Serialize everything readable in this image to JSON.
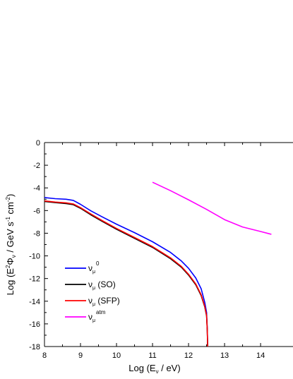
{
  "chart_data": {
    "type": "line",
    "xlabel": {
      "pre": "Log (E",
      "sub": "ν",
      "post": " / eV)"
    },
    "ylabel": {
      "pre": "Log (E",
      "sup1": "2",
      "mid1": "Φ",
      "sub1": "ν",
      "mid2": " / GeV s",
      "sup2": "-1",
      "mid3": " cm",
      "sup3": "-2",
      "post": ")"
    },
    "xlim": [
      8,
      14.9
    ],
    "ylim": [
      -18,
      0
    ],
    "xticks": [
      8,
      9,
      10,
      11,
      12,
      13,
      14
    ],
    "yticks": [
      0,
      -2,
      -4,
      -6,
      -8,
      -10,
      -12,
      -14,
      -16,
      -18
    ],
    "grid": false,
    "legend_position": "bottom-left",
    "series": [
      {
        "name": "ν_μ^0",
        "legend": {
          "base": "ν",
          "sub": "μ",
          "sup": "0",
          "suffix": ""
        },
        "color": "#0000ff",
        "points": [
          [
            8.0,
            -4.85
          ],
          [
            8.3,
            -4.95
          ],
          [
            8.6,
            -5.0
          ],
          [
            8.8,
            -5.1
          ],
          [
            9.0,
            -5.45
          ],
          [
            9.3,
            -6.05
          ],
          [
            9.6,
            -6.55
          ],
          [
            10.0,
            -7.2
          ],
          [
            10.5,
            -7.95
          ],
          [
            11.0,
            -8.75
          ],
          [
            11.5,
            -9.7
          ],
          [
            11.8,
            -10.45
          ],
          [
            12.0,
            -11.1
          ],
          [
            12.2,
            -11.95
          ],
          [
            12.35,
            -12.9
          ],
          [
            12.45,
            -14.1
          ],
          [
            12.5,
            -15.0
          ],
          [
            12.52,
            -16.5
          ],
          [
            12.53,
            -18.0
          ]
        ]
      },
      {
        "name": "ν_μ (SO)",
        "legend": {
          "base": "ν",
          "sub": "μ",
          "sup": "",
          "suffix": " (SO)"
        },
        "color": "#000000",
        "points": [
          [
            8.0,
            -5.2
          ],
          [
            8.3,
            -5.3
          ],
          [
            8.6,
            -5.38
          ],
          [
            8.8,
            -5.48
          ],
          [
            9.0,
            -5.8
          ],
          [
            9.3,
            -6.4
          ],
          [
            9.6,
            -6.95
          ],
          [
            10.0,
            -7.65
          ],
          [
            10.5,
            -8.45
          ],
          [
            11.0,
            -9.25
          ],
          [
            11.5,
            -10.25
          ],
          [
            11.8,
            -11.0
          ],
          [
            12.0,
            -11.7
          ],
          [
            12.2,
            -12.55
          ],
          [
            12.35,
            -13.5
          ],
          [
            12.45,
            -14.5
          ],
          [
            12.5,
            -15.3
          ],
          [
            12.52,
            -16.6
          ],
          [
            12.53,
            -18.0
          ]
        ]
      },
      {
        "name": "ν_μ (SFP)",
        "legend": {
          "base": "ν",
          "sub": "μ",
          "sup": "",
          "suffix": " (SFP)"
        },
        "color": "#ff0000",
        "points": [
          [
            8.0,
            -5.15
          ],
          [
            8.3,
            -5.25
          ],
          [
            8.6,
            -5.32
          ],
          [
            8.8,
            -5.42
          ],
          [
            9.0,
            -5.74
          ],
          [
            9.3,
            -6.33
          ],
          [
            9.6,
            -6.88
          ],
          [
            10.0,
            -7.58
          ],
          [
            10.5,
            -8.38
          ],
          [
            11.0,
            -9.18
          ],
          [
            11.5,
            -10.18
          ],
          [
            11.8,
            -10.93
          ],
          [
            12.0,
            -11.63
          ],
          [
            12.2,
            -12.48
          ],
          [
            12.35,
            -13.43
          ],
          [
            12.45,
            -14.45
          ],
          [
            12.5,
            -15.25
          ],
          [
            12.52,
            -16.6
          ],
          [
            12.53,
            -18.0
          ]
        ]
      },
      {
        "name": "ν_μ^atm",
        "legend": {
          "base": "ν",
          "sub": "μ",
          "sup": "atm",
          "suffix": ""
        },
        "color": "#ff00ff",
        "points": [
          [
            11.0,
            -3.5
          ],
          [
            11.5,
            -4.25
          ],
          [
            12.0,
            -5.05
          ],
          [
            12.5,
            -5.9
          ],
          [
            13.0,
            -6.8
          ],
          [
            13.5,
            -7.45
          ],
          [
            14.0,
            -7.85
          ],
          [
            14.3,
            -8.1
          ]
        ]
      }
    ]
  }
}
